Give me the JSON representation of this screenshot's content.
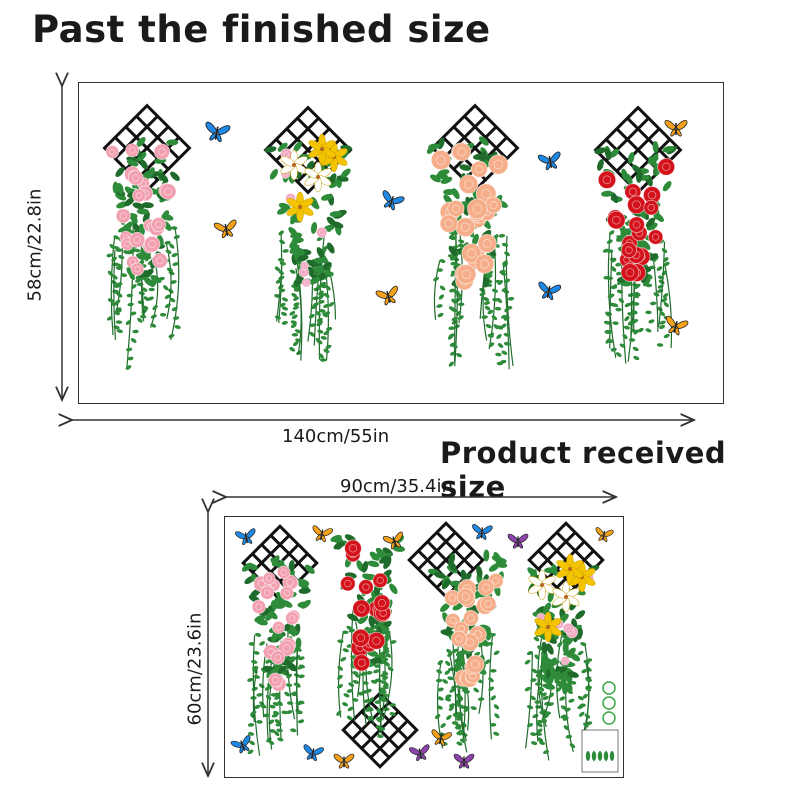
{
  "finished": {
    "title": "Past the finished size",
    "width_label": "140cm/55in",
    "height_label": "58cm/22.8in"
  },
  "received": {
    "title": "Product received size",
    "width_label": "90cm/35.4in",
    "height_label": "60cm/23.6in"
  },
  "colors": {
    "leaf": "#2e8b3a",
    "leaf_dark": "#1f6b2b",
    "pink_rose": "#f2a0b0",
    "peach_rose": "#f6ae8a",
    "red_rose": "#d3121c",
    "lily_yellow": "#f5c400",
    "lily_white": "#ffffff",
    "butterfly_blue": "#1e88e5",
    "butterfly_orange": "#f5a11a",
    "trellis": "#111111"
  }
}
